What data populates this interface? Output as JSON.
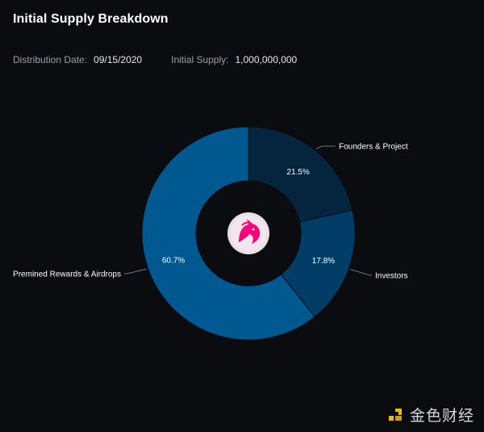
{
  "header": {
    "title": "Initial Supply Breakdown",
    "distribution_date_label": "Distribution Date:",
    "distribution_date_value": "09/15/2020",
    "initial_supply_label": "Initial Supply:",
    "initial_supply_value": "1,000,000,000"
  },
  "chart_data": {
    "type": "pie",
    "style": "donut",
    "title": "Initial Supply Breakdown",
    "slices": [
      {
        "label": "Founders & Project",
        "value": 21.5,
        "display": "21.5%",
        "color": "#05253f"
      },
      {
        "label": "Investors",
        "value": 17.8,
        "display": "17.8%",
        "color": "#013d66"
      },
      {
        "label": "Premined Rewards & Airdrops",
        "value": 60.7,
        "display": "60.7%",
        "color": "#005891"
      }
    ]
  },
  "logo": {
    "icon": "uniswap-unicorn-icon",
    "color": "#ff007a"
  },
  "watermark": {
    "text": "金色财经",
    "icon": "jinse-logo-icon",
    "accent": "#f0b90b"
  }
}
